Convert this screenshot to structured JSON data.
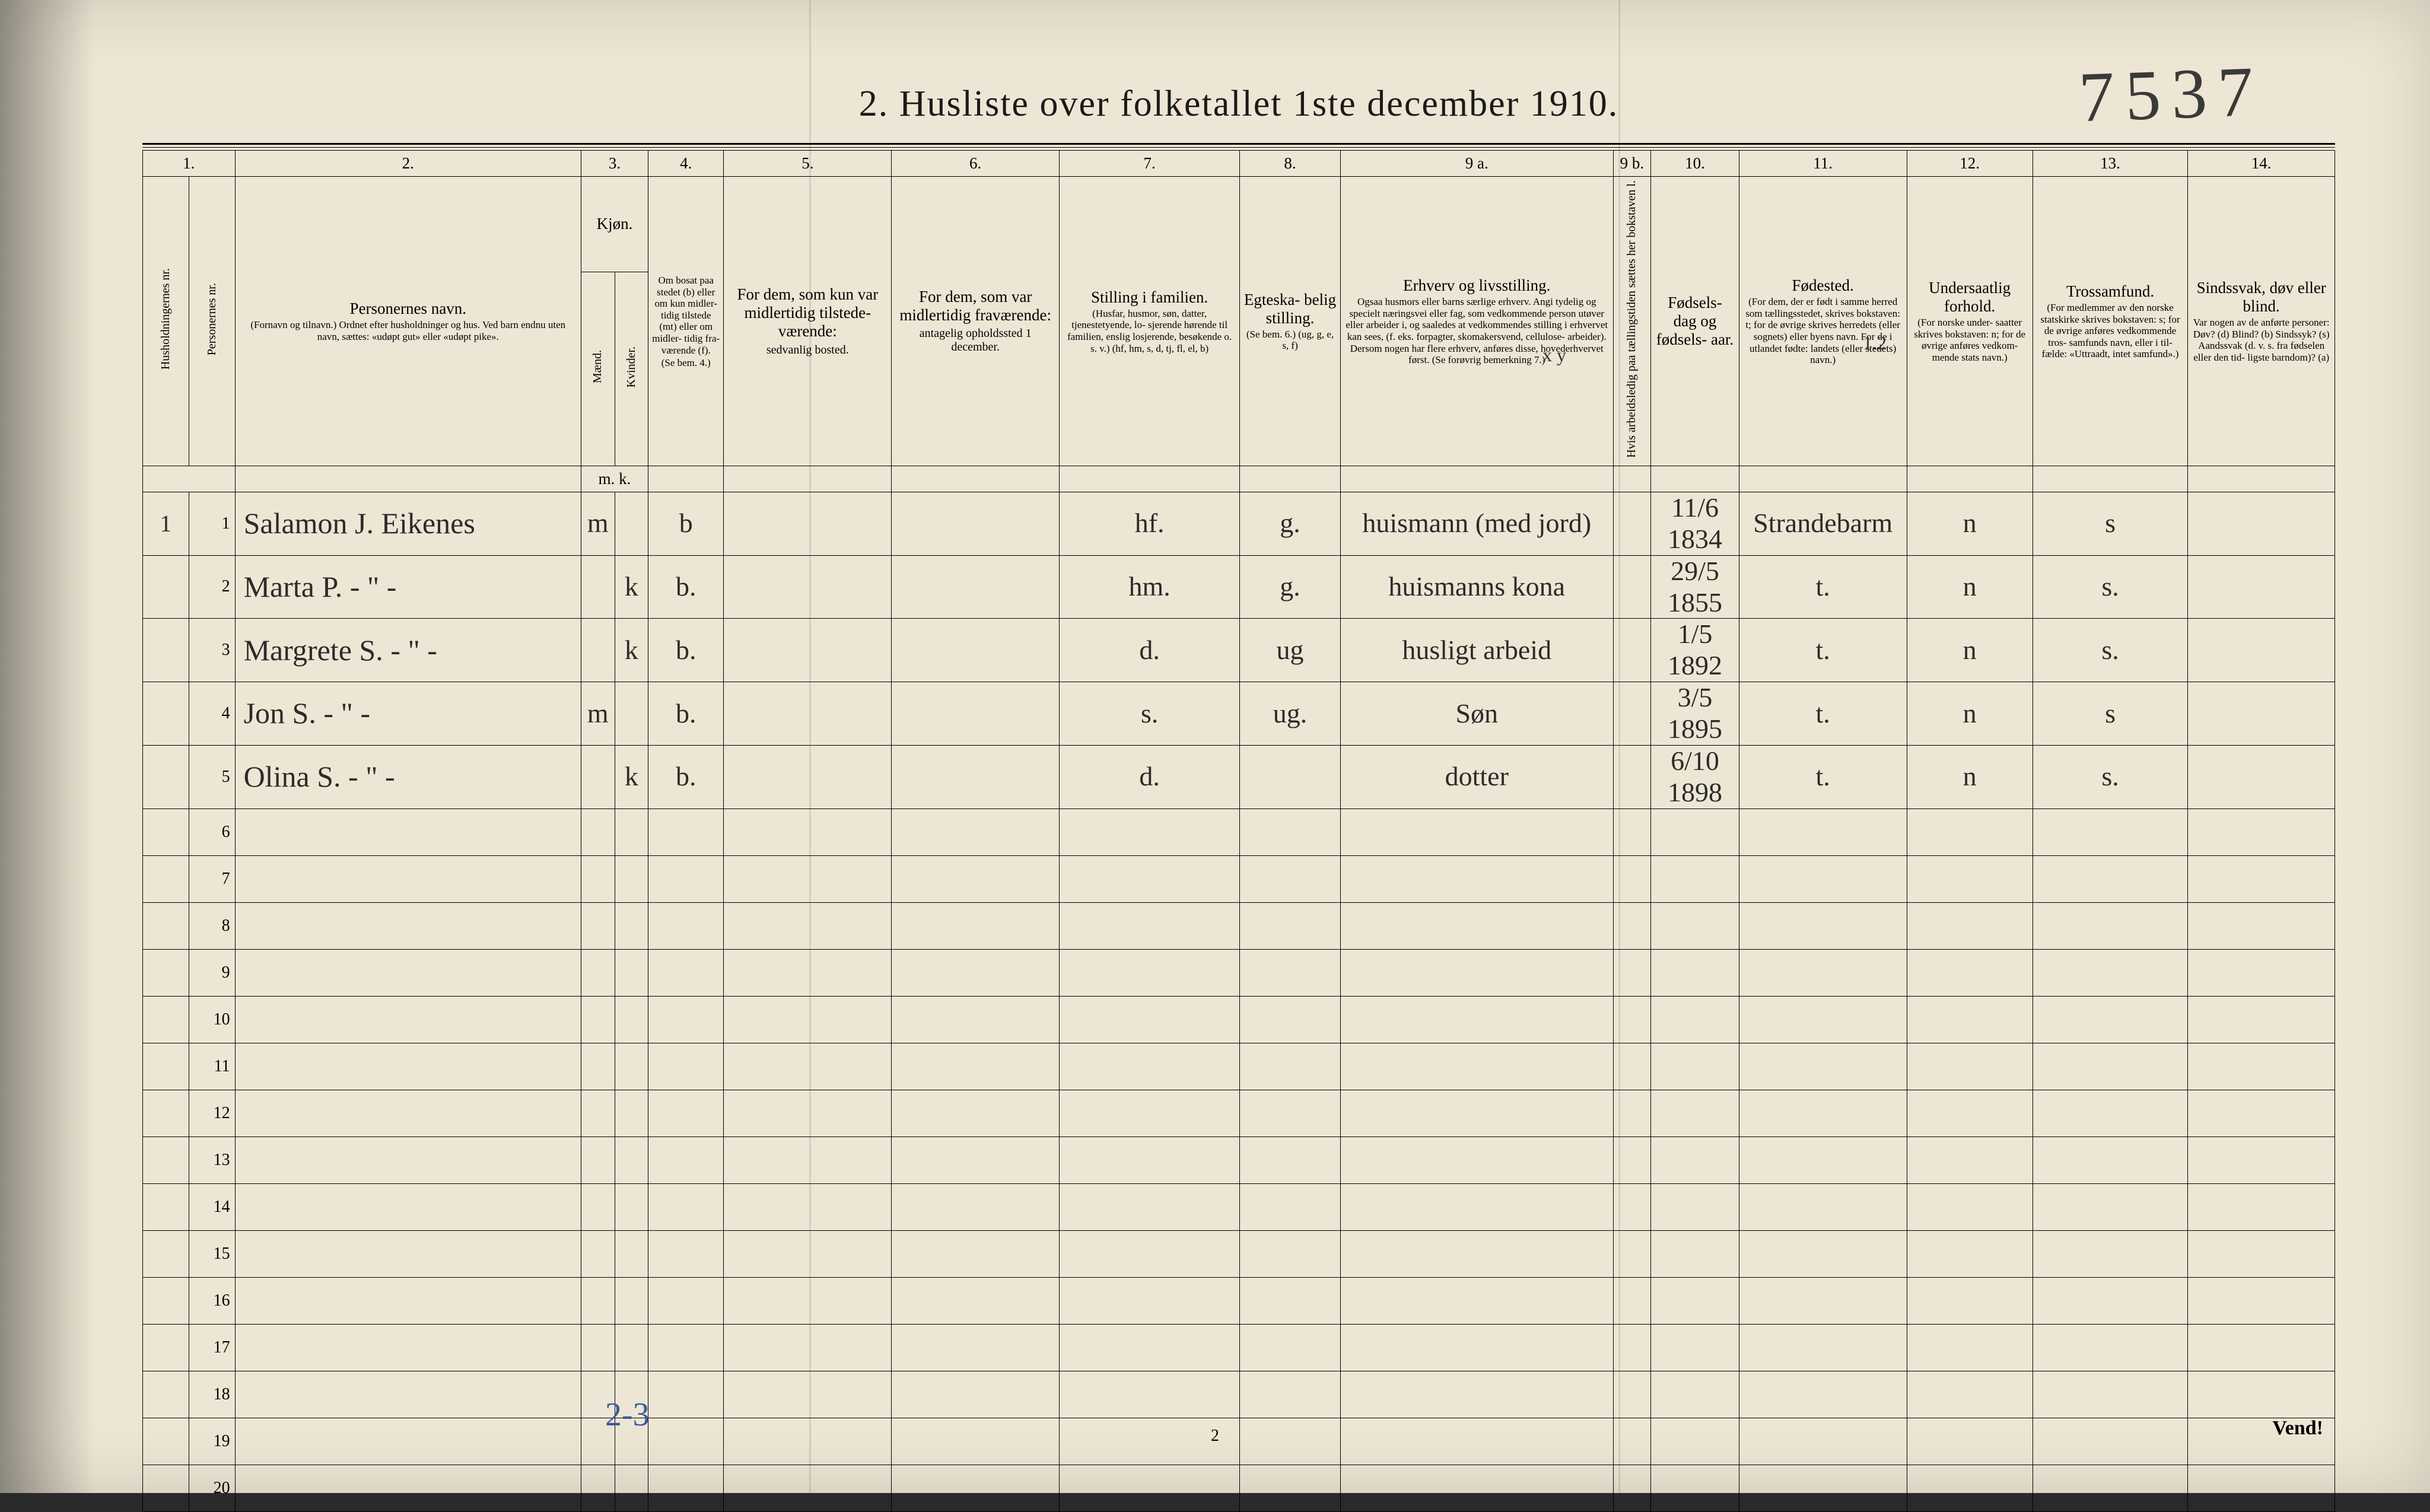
{
  "page": {
    "title": "2.  Husliste over folketallet 1ste december 1910.",
    "handwritten_top": "7537",
    "foot_annotation": "2-3",
    "page_number": "2",
    "vend": "Vend!",
    "background_color": "#ede6d4",
    "handwriting_color": "#2b2b2b",
    "blue_ink_color": "#3a5a9a",
    "annot_xy": "x y",
    "annot_12": "1.2"
  },
  "colnums": [
    "1.",
    "2.",
    "3.",
    "4.",
    "5.",
    "6.",
    "7.",
    "8.",
    "9 a.",
    "9 b.",
    "10.",
    "11.",
    "12.",
    "13.",
    "14."
  ],
  "col_widths_pct": [
    2.2,
    2.2,
    16.5,
    1.6,
    1.6,
    3.6,
    8.0,
    8.0,
    8.6,
    4.8,
    13.0,
    1.8,
    4.2,
    8.0,
    6.0,
    7.4,
    7.0
  ],
  "headers": {
    "c1a": "Husholdningernes nr.",
    "c1b": "Personernes nr.",
    "c2_title": "Personernes navn.",
    "c2_sub": "(Fornavn og tilnavn.)\nOrdnet efter husholdninger og hus.\nVed barn endnu uten navn, sættes: «udøpt gut»\neller «udøpt pike».",
    "c3_title": "Kjøn.",
    "c3_m": "Mænd.",
    "c3_k": "Kvinder.",
    "c3_mk": "m.   k.",
    "c4_title": "Om bosat paa stedet (b) eller om kun midler- tidig tilstede (mt) eller om midler- tidig fra- værende (f).",
    "c4_sub": "(Se bem. 4.)",
    "c5_title": "For dem, som kun var midlertidig tilstede- værende:",
    "c5_sub": "sedvanlig bosted.",
    "c6_title": "For dem, som var midlertidig fraværende:",
    "c6_sub": "antagelig opholdssted 1 december.",
    "c7_title": "Stilling i familien.",
    "c7_sub": "(Husfar, husmor, søn, datter, tjenestetyende, lo- sjerende hørende til familien, enslig losjerende, besøkende o. s. v.)\n(hf, hm, s, d, tj, fl, el, b)",
    "c8_title": "Egteska- belig stilling.",
    "c8_sub": "(Se bem. 6.)\n(ug, g, e, s, f)",
    "c9a_title": "Erhverv og livsstilling.",
    "c9a_sub": "Ogsaa husmors eller barns særlige erhverv.\nAngi tydelig og specielt næringsvei eller fag, som vedkommende person utøver eller arbeider i, og saaledes at vedkommendes stilling i erhvervet kan sees, (f. eks. forpagter, skomakersvend, cellulose- arbeider). Dersom nogen har flere erhverv, anføres disse, hovederhvervet først.\n(Se forøvrig bemerkning 7.)",
    "c9b": "Hvis arbeidsledig paa tællingstiden sættes her bokstaven l.",
    "c10_title": "Fødsels- dag og fødsels- aar.",
    "c11_title": "Fødested.",
    "c11_sub": "(For dem, der er født i samme herred som tællingsstedet, skrives bokstaven: t; for de øvrige skrives herredets (eller sognets) eller byens navn. For de i utlandet fødte: landets (eller stedets) navn.)",
    "c12_title": "Undersaatlig forhold.",
    "c12_sub": "(For norske under- saatter skrives bokstaven: n; for de øvrige anføres vedkom- mende stats navn.)",
    "c13_title": "Trossamfund.",
    "c13_sub": "(For medlemmer av den norske statskirke skrives bokstaven: s; for de øvrige anføres vedkommende tros- samfunds navn, eller i til- fælde: «Uttraadt, intet samfund».)",
    "c14_title": "Sindssvak, døv eller blind.",
    "c14_sub": "Var nogen av de anførte personer:\nDøv?  (d)\nBlind?  (b)\nSindssyk? (s)\nAandssvak (d. v. s. fra fødselen eller den tid- ligste barndom)?  (a)"
  },
  "rows": [
    {
      "hh": "1",
      "pn": "1",
      "name": "Salamon J. Eikenes",
      "m": "m",
      "k": "",
      "res": "b",
      "stilling": "hf.",
      "egte": "g.",
      "erhverv": "huismann (med jord)",
      "dob": "11/6 1834",
      "fodested": "Strandebarm",
      "under": "n",
      "tros": "s",
      "c14": ""
    },
    {
      "hh": "",
      "pn": "2",
      "name": "Marta P.      - \" -",
      "m": "",
      "k": "k",
      "res": "b.",
      "stilling": "hm.",
      "egte": "g.",
      "erhverv": "huismanns kona",
      "dob": "29/5 1855",
      "fodested": "t.",
      "under": "n",
      "tros": "s.",
      "c14": ""
    },
    {
      "hh": "",
      "pn": "3",
      "name": "Margrete S.   - \" -",
      "m": "",
      "k": "k",
      "res": "b.",
      "stilling": "d.",
      "egte": "ug",
      "erhverv": "husligt arbeid",
      "dob": "1/5 1892",
      "fodested": "t.",
      "under": "n",
      "tros": "s.",
      "c14": ""
    },
    {
      "hh": "",
      "pn": "4",
      "name": "Jon       S.   - \" -",
      "m": "m",
      "k": "",
      "res": "b.",
      "stilling": "s.",
      "egte": "ug.",
      "erhverv": "Søn",
      "dob": "3/5 1895",
      "fodested": "t.",
      "under": "n",
      "tros": "s",
      "c14": ""
    },
    {
      "hh": "",
      "pn": "5",
      "name": "Olina    S.   - \" -",
      "m": "",
      "k": "k",
      "res": "b.",
      "stilling": "d.",
      "egte": "",
      "erhverv": "dotter",
      "dob": "6/10 1898",
      "fodested": "t.",
      "under": "n",
      "tros": "s.",
      "c14": ""
    }
  ],
  "empty_row_count": 15,
  "typography": {
    "title_fontsize_pt": 46,
    "header_fontsize_pt": 20,
    "header_small_fontsize_pt": 15,
    "handwriting_fontsize_pt": 36,
    "rownum_fontsize_pt": 21
  }
}
